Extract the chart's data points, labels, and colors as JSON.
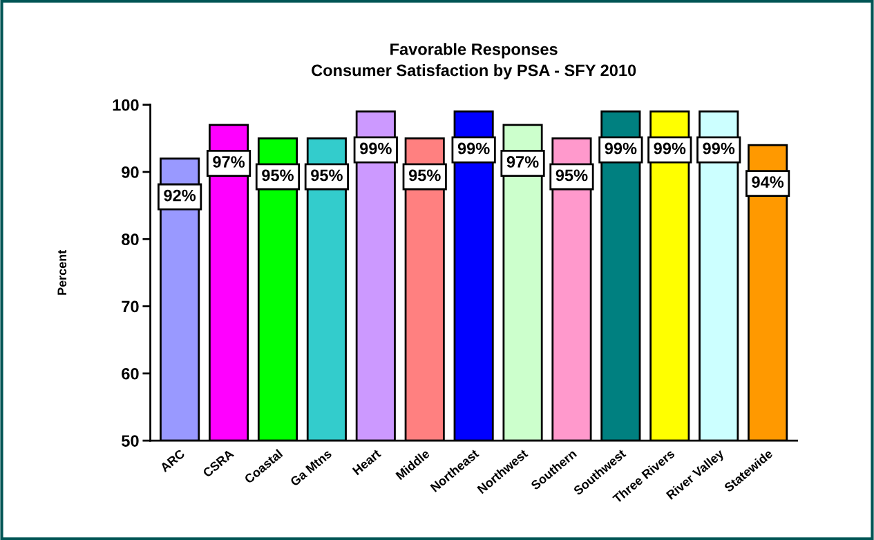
{
  "chart_data": {
    "type": "bar",
    "title": "Favorable Responses\nConsumer Satisfaction by PSA - SFY 2010",
    "ylabel": "Percent",
    "categories": [
      "ARC",
      "CSRA",
      "Coastal",
      "Ga Mtns",
      "Heart",
      "Middle",
      "Northeast",
      "Northwest",
      "Southern",
      "Southwest",
      "Three Rivers",
      "River Valley",
      "Statewide"
    ],
    "values": [
      92,
      97,
      95,
      95,
      99,
      95,
      99,
      97,
      95,
      99,
      99,
      99,
      94
    ],
    "colors": [
      "#9999ff",
      "#ff00ff",
      "#00ff00",
      "#33cccc",
      "#cc99ff",
      "#ff8080",
      "#0000ff",
      "#ccffcc",
      "#ff99cc",
      "#008080",
      "#ffff00",
      "#ccffff",
      "#ff9900"
    ],
    "value_labels": [
      "92%",
      "97%",
      "95%",
      "95%",
      "99%",
      "95%",
      "99%",
      "97%",
      "95%",
      "99%",
      "99%",
      "99%",
      "94%"
    ],
    "ylim": [
      50,
      100
    ],
    "yticks": [
      50,
      60,
      70,
      80,
      90,
      100
    ],
    "grid": false,
    "legend": false
  }
}
